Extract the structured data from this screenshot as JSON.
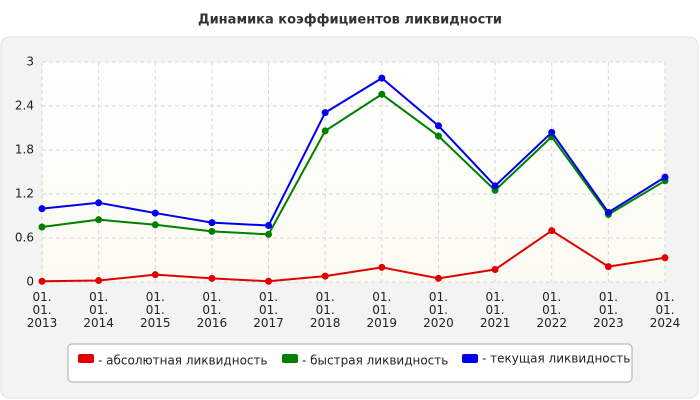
{
  "chart_data": {
    "type": "line",
    "title": "Динамика коэффициентов ликвидности",
    "categories": [
      "01.\n01.\n2013",
      "01.\n01.\n2014",
      "01.\n01.\n2015",
      "01.\n01.\n2016",
      "01.\n01.\n2017",
      "01.\n01.\n2018",
      "01.\n01.\n2019",
      "01.\n01.\n2020",
      "01.\n01.\n2021",
      "01.\n01.\n2022",
      "01.\n01.\n2023",
      "01.\n01.\n2024"
    ],
    "series": [
      {
        "name": "- абсолютная ликвидность",
        "color": "#e00000",
        "values": [
          0.01,
          0.02,
          0.1,
          0.05,
          0.01,
          0.08,
          0.2,
          0.05,
          0.17,
          0.7,
          0.21,
          0.33
        ]
      },
      {
        "name": "- быстрая ликвидность",
        "color": "#008000",
        "values": [
          0.75,
          0.85,
          0.78,
          0.69,
          0.65,
          2.06,
          2.56,
          1.99,
          1.25,
          1.98,
          0.92,
          1.38
        ]
      },
      {
        "name": "- текущая ликвидность",
        "color": "#0000ee",
        "values": [
          1.0,
          1.08,
          0.94,
          0.81,
          0.77,
          2.31,
          2.78,
          2.13,
          1.31,
          2.04,
          0.95,
          1.43
        ]
      }
    ],
    "ylim": [
      0,
      3
    ],
    "yticks": [
      0,
      0.6,
      1.2,
      1.8,
      2.4,
      3
    ],
    "grid": true
  }
}
